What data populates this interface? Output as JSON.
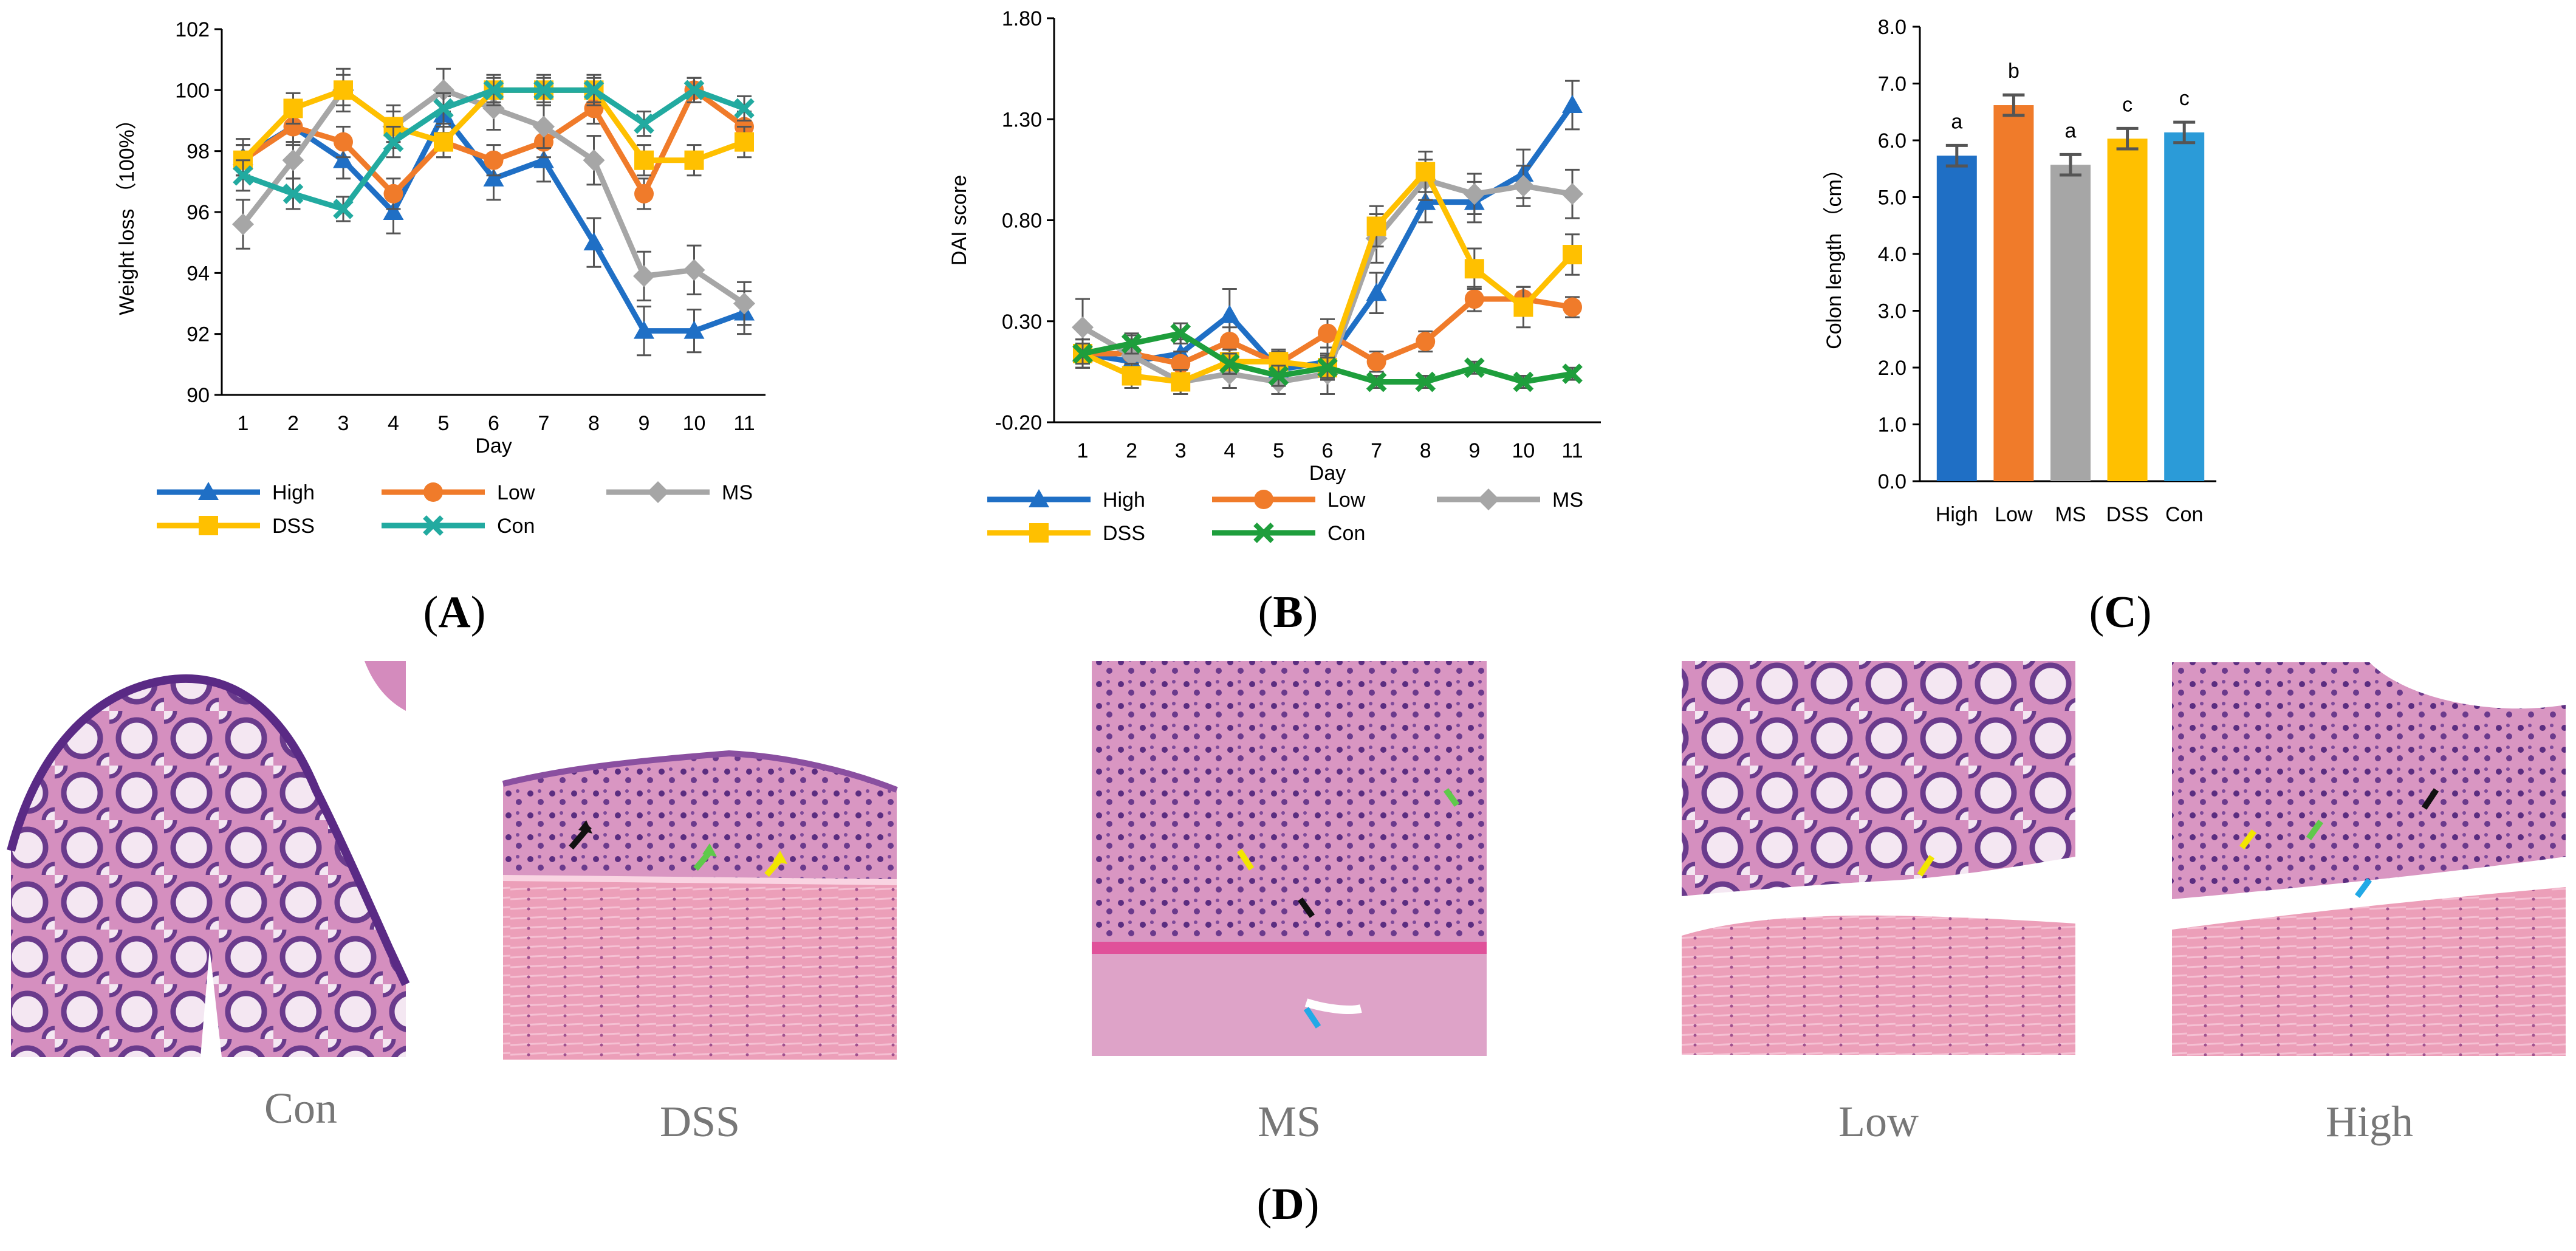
{
  "colors": {
    "high": "#1f6fc5",
    "low": "#f07b2a",
    "ms": "#a6a6a6",
    "dss": "#ffc000",
    "con_line_a": "#22aaa0",
    "con_line_b": "#1e9e3c",
    "con_bar": "#2b9bd8",
    "error": "#555555",
    "tissue_pink": "#e7a7c6",
    "tissue_purple": "#7c4a9a",
    "arrow_black": "#111111",
    "arrow_green": "#5fc94b",
    "arrow_yellow": "#f2e600",
    "arrow_blue": "#22a9e6"
  },
  "panel_labels": {
    "a": "A",
    "b": "B",
    "c": "C",
    "d": "D"
  },
  "chart_data": [
    {
      "type": "line",
      "xlabel": "Day",
      "ylabel": "Weight loss （100%）",
      "x": [
        1,
        2,
        3,
        4,
        5,
        6,
        7,
        8,
        9,
        10,
        11
      ],
      "ylim": [
        90,
        102
      ],
      "yticks": [
        "90",
        "92",
        "94",
        "96",
        "98",
        "100",
        "102"
      ],
      "legend_position": "bottom",
      "series": [
        {
          "name": "High",
          "values": [
            97.8,
            98.8,
            97.7,
            96.0,
            99.2,
            97.1,
            97.7,
            95.0,
            92.1,
            92.1,
            92.7
          ],
          "errors": [
            0.6,
            0.6,
            0.6,
            0.7,
            0.6,
            0.7,
            0.7,
            0.8,
            0.8,
            0.7,
            0.7
          ]
        },
        {
          "name": "Low",
          "values": [
            97.7,
            98.8,
            98.3,
            96.6,
            98.3,
            97.7,
            98.3,
            99.4,
            96.6,
            100.0,
            98.8
          ],
          "errors": [
            0.5,
            0.5,
            0.5,
            0.5,
            0.5,
            0.5,
            0.5,
            0.5,
            0.5,
            0.4,
            0.5
          ]
        },
        {
          "name": "MS",
          "values": [
            95.6,
            97.7,
            100.0,
            98.8,
            100.0,
            99.4,
            98.8,
            97.7,
            93.9,
            94.1,
            93.0
          ],
          "errors": [
            0.8,
            0.6,
            0.7,
            0.7,
            0.7,
            0.7,
            0.7,
            0.8,
            0.8,
            0.8,
            0.7
          ]
        },
        {
          "name": "DSS",
          "values": [
            97.7,
            99.4,
            100.0,
            98.8,
            98.3,
            100.0,
            100.0,
            100.0,
            97.7,
            97.7,
            98.3
          ],
          "errors": [
            0.5,
            0.5,
            0.5,
            0.5,
            0.5,
            0.5,
            0.5,
            0.5,
            0.5,
            0.5,
            0.5
          ]
        },
        {
          "name": "Con",
          "values": [
            97.2,
            96.6,
            96.1,
            98.3,
            99.4,
            100.0,
            100.0,
            100.0,
            98.9,
            100.0,
            99.4
          ],
          "errors": [
            0.5,
            0.5,
            0.4,
            0.5,
            0.5,
            0.4,
            0.4,
            0.4,
            0.4,
            0.4,
            0.4
          ]
        }
      ]
    },
    {
      "type": "line",
      "xlabel": "Day",
      "ylabel": "DAI score",
      "x": [
        1,
        2,
        3,
        4,
        5,
        6,
        7,
        8,
        9,
        10,
        11
      ],
      "ylim": [
        -0.2,
        1.8
      ],
      "yticks": [
        "-0.20",
        "0.30",
        "0.80",
        "1.30",
        "1.80"
      ],
      "legend_position": "bottom",
      "series": [
        {
          "name": "High",
          "values": [
            0.14,
            0.1,
            0.14,
            0.33,
            0.06,
            0.1,
            0.44,
            0.89,
            0.89,
            1.03,
            1.37
          ],
          "errors": [
            0.07,
            0.07,
            0.07,
            0.13,
            0.06,
            0.07,
            0.1,
            0.1,
            0.1,
            0.12,
            0.12
          ]
        },
        {
          "name": "Low",
          "values": [
            0.14,
            0.14,
            0.09,
            0.2,
            0.09,
            0.24,
            0.1,
            0.2,
            0.41,
            0.41,
            0.37
          ],
          "errors": [
            0.07,
            0.07,
            0.06,
            0.07,
            0.06,
            0.07,
            0.05,
            0.05,
            0.06,
            0.06,
            0.05
          ]
        },
        {
          "name": "MS",
          "values": [
            0.27,
            0.13,
            0.0,
            0.04,
            0.0,
            0.04,
            0.71,
            1.0,
            0.93,
            0.97,
            0.93
          ],
          "errors": [
            0.14,
            0.1,
            0.06,
            0.07,
            0.06,
            0.1,
            0.12,
            0.1,
            0.1,
            0.1,
            0.12
          ]
        },
        {
          "name": "DSS",
          "values": [
            0.14,
            0.03,
            0.0,
            0.1,
            0.1,
            0.07,
            0.77,
            1.04,
            0.56,
            0.37,
            0.63
          ],
          "errors": [
            0.07,
            0.06,
            0.06,
            0.06,
            0.06,
            0.06,
            0.1,
            0.1,
            0.1,
            0.1,
            0.1
          ]
        },
        {
          "name": "Con",
          "values": [
            0.14,
            0.19,
            0.24,
            0.09,
            0.03,
            0.07,
            0.0,
            0.0,
            0.07,
            0.0,
            0.04
          ],
          "errors": [
            0.05,
            0.05,
            0.05,
            0.05,
            0.05,
            0.05,
            0.03,
            0.03,
            0.03,
            0.03,
            0.03
          ]
        }
      ]
    },
    {
      "type": "bar",
      "ylabel": "Colon length （cm）",
      "categories": [
        "High",
        "Low",
        "MS",
        "DSS",
        "Con"
      ],
      "values": [
        5.73,
        6.62,
        5.57,
        6.03,
        6.14
      ],
      "errors": [
        0.18,
        0.18,
        0.18,
        0.18,
        0.18
      ],
      "annotations": [
        "a",
        "b",
        "a",
        "c",
        "c"
      ],
      "ylim": [
        0,
        8
      ],
      "yticks": [
        "0.0",
        "1.0",
        "2.0",
        "3.0",
        "4.0",
        "5.0",
        "6.0",
        "7.0",
        "8.0"
      ]
    }
  ],
  "histology": {
    "captions": [
      "Con",
      "DSS",
      "MS",
      "Low",
      "High"
    ]
  }
}
